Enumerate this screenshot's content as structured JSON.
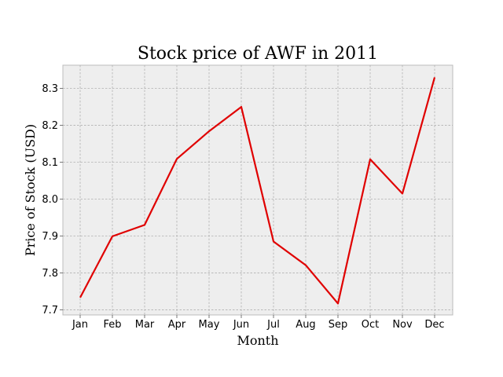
{
  "chart_data": {
    "type": "line",
    "title": "Stock price of AWF in 2011",
    "xlabel": "Month",
    "ylabel": "Price of Stock (USD)",
    "categories": [
      "Jan",
      "Feb",
      "Mar",
      "Apr",
      "May",
      "Jun",
      "Jul",
      "Aug",
      "Sep",
      "Oct",
      "Nov",
      "Dec"
    ],
    "series": [
      {
        "color": "#e00000",
        "values": [
          7.733,
          7.899,
          7.93,
          8.109,
          8.184,
          8.25,
          7.885,
          7.821,
          7.717,
          8.108,
          8.015,
          8.33
        ]
      }
    ],
    "ylim": [
      7.686,
      8.363
    ],
    "yticks": [
      "7.7",
      "7.8",
      "7.9",
      "8.0",
      "8.1",
      "8.2",
      "8.3"
    ],
    "grid": true,
    "plot_background": "#eeeeee"
  }
}
